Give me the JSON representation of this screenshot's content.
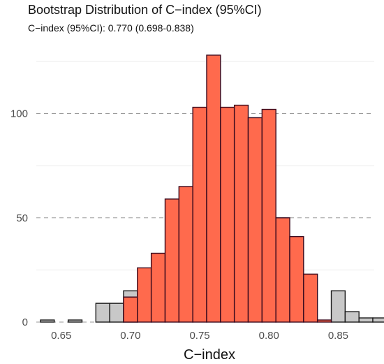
{
  "chart_data": {
    "type": "bar",
    "title": "Bootstrap Distribution of C−index (95%CI)",
    "subtitle": "C−index (95%CI): 0.770 (0.698-0.838)",
    "xlabel": "C−index",
    "ylabel": "",
    "xlim": [
      0.632,
      0.876
    ],
    "ylim": [
      0,
      128
    ],
    "x_ticks": [
      0.65,
      0.7,
      0.75,
      0.8,
      0.85
    ],
    "x_tick_labels": [
      "0.65",
      "0.70",
      "0.75",
      "0.80",
      "0.85"
    ],
    "y_ticks": [
      0,
      50,
      100
    ],
    "y_tick_labels": [
      "0",
      "50",
      "100"
    ],
    "grid": "horizontal, dashed at major ticks",
    "bin_width": 0.01,
    "series": [
      {
        "color": "#c8c8c8",
        "edge_color": "#1a1a1a",
        "bins": [
          {
            "x": 0.64,
            "value": 1
          },
          {
            "x": 0.66,
            "value": 1
          },
          {
            "x": 0.68,
            "value": 9
          },
          {
            "x": 0.69,
            "value": 9
          },
          {
            "x": 0.7,
            "value": 15
          },
          {
            "x": 0.85,
            "value": 15
          },
          {
            "x": 0.86,
            "value": 5
          },
          {
            "x": 0.87,
            "value": 2
          },
          {
            "x": 0.88,
            "value": 2
          }
        ]
      },
      {
        "color": "#ff6a4d",
        "edge_color": "#3a0a1e",
        "bins": [
          {
            "x": 0.7,
            "value": 12
          },
          {
            "x": 0.71,
            "value": 26
          },
          {
            "x": 0.72,
            "value": 33
          },
          {
            "x": 0.73,
            "value": 59
          },
          {
            "x": 0.74,
            "value": 65
          },
          {
            "x": 0.75,
            "value": 103
          },
          {
            "x": 0.76,
            "value": 128
          },
          {
            "x": 0.77,
            "value": 103
          },
          {
            "x": 0.78,
            "value": 104
          },
          {
            "x": 0.79,
            "value": 98
          },
          {
            "x": 0.8,
            "value": 102
          },
          {
            "x": 0.81,
            "value": 50
          },
          {
            "x": 0.82,
            "value": 41
          },
          {
            "x": 0.83,
            "value": 23
          },
          {
            "x": 0.84,
            "value": 1
          }
        ]
      }
    ]
  }
}
